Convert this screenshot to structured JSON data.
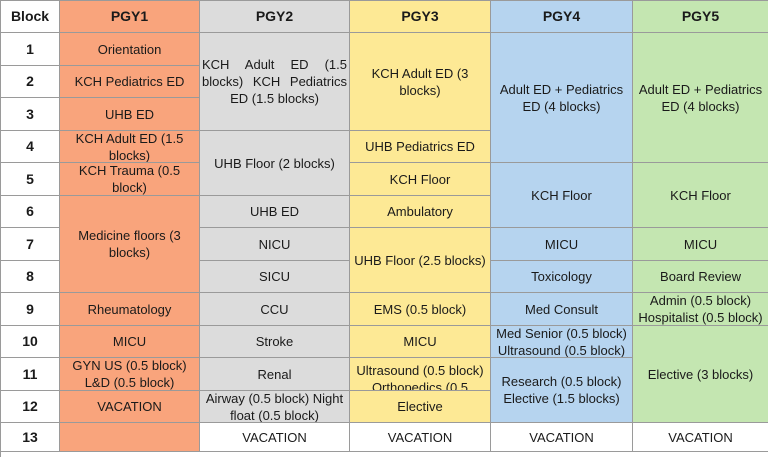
{
  "header": {
    "block": "Block",
    "pgy1": "PGY1",
    "pgy2": "PGY2",
    "pgy3": "PGY3",
    "pgy4": "PGY4",
    "pgy5": "PGY5"
  },
  "blocks": [
    "1",
    "2",
    "3",
    "4",
    "5",
    "6",
    "7",
    "8",
    "9",
    "10",
    "11",
    "12",
    "13"
  ],
  "pgy1": {
    "b1": "Orientation",
    "b2": "KCH Pediatrics ED",
    "b3": "UHB ED",
    "b4": "KCH Adult ED (1.5 blocks)",
    "b5": "KCH Trauma (0.5 block)",
    "b6_8": "Medicine floors (3 blocks)",
    "b9": "Rheumatology",
    "b10": "MICU",
    "b11": "GYN US (0.5 block) L&D (0.5 block)",
    "b12": "VACATION",
    "b13": ""
  },
  "pgy2": {
    "b1_3": "KCH Adult ED (1.5 blocks) KCH Pediatrics ED (1.5 blocks)",
    "b4_5": "UHB Floor (2 blocks)",
    "b6": "UHB ED",
    "b7": "NICU",
    "b8": "SICU",
    "b9": "CCU",
    "b10": "Stroke",
    "b11": "Renal",
    "b12": "Airway (0.5 block) Night float (0.5 block)",
    "b13": "VACATION"
  },
  "pgy3": {
    "b1_3": "KCH Adult ED (3 blocks)",
    "b4": "UHB Pediatrics ED",
    "b5": "KCH Floor",
    "b6": "Ambulatory",
    "b7_8": "UHB Floor (2.5 blocks)",
    "b9": "EMS (0.5 block)",
    "b10": "MICU",
    "b11": "Ultrasound (0.5 block) Orthopedics (0.5",
    "b12": "Elective",
    "b13": "VACATION"
  },
  "pgy4": {
    "b1_4": "Adult ED + Pediatrics ED (4 blocks)",
    "b5_6": "KCH Floor",
    "b7": "MICU",
    "b8": "Toxicology",
    "b9": "Med Consult",
    "b10": "Med Senior (0.5 block) Ultrasound (0.5 block)",
    "b11_12": "Research (0.5 block) Elective (1.5 blocks)",
    "b13": "VACATION"
  },
  "pgy5": {
    "b1_4": "Adult ED + Pediatrics ED (4 blocks)",
    "b5_6": "KCH Floor",
    "b7": "MICU",
    "b8": "Board Review",
    "b9": "Admin (0.5 block) Hospitalist (0.5 block)",
    "b10_12": "Elective (3 blocks)",
    "b13": "VACATION"
  },
  "colors": {
    "pgy1": "#f9a47c",
    "pgy2": "#dcdcdc",
    "pgy3": "#fde995",
    "pgy4": "#b6d4ef",
    "pgy5": "#c4e6b1"
  }
}
